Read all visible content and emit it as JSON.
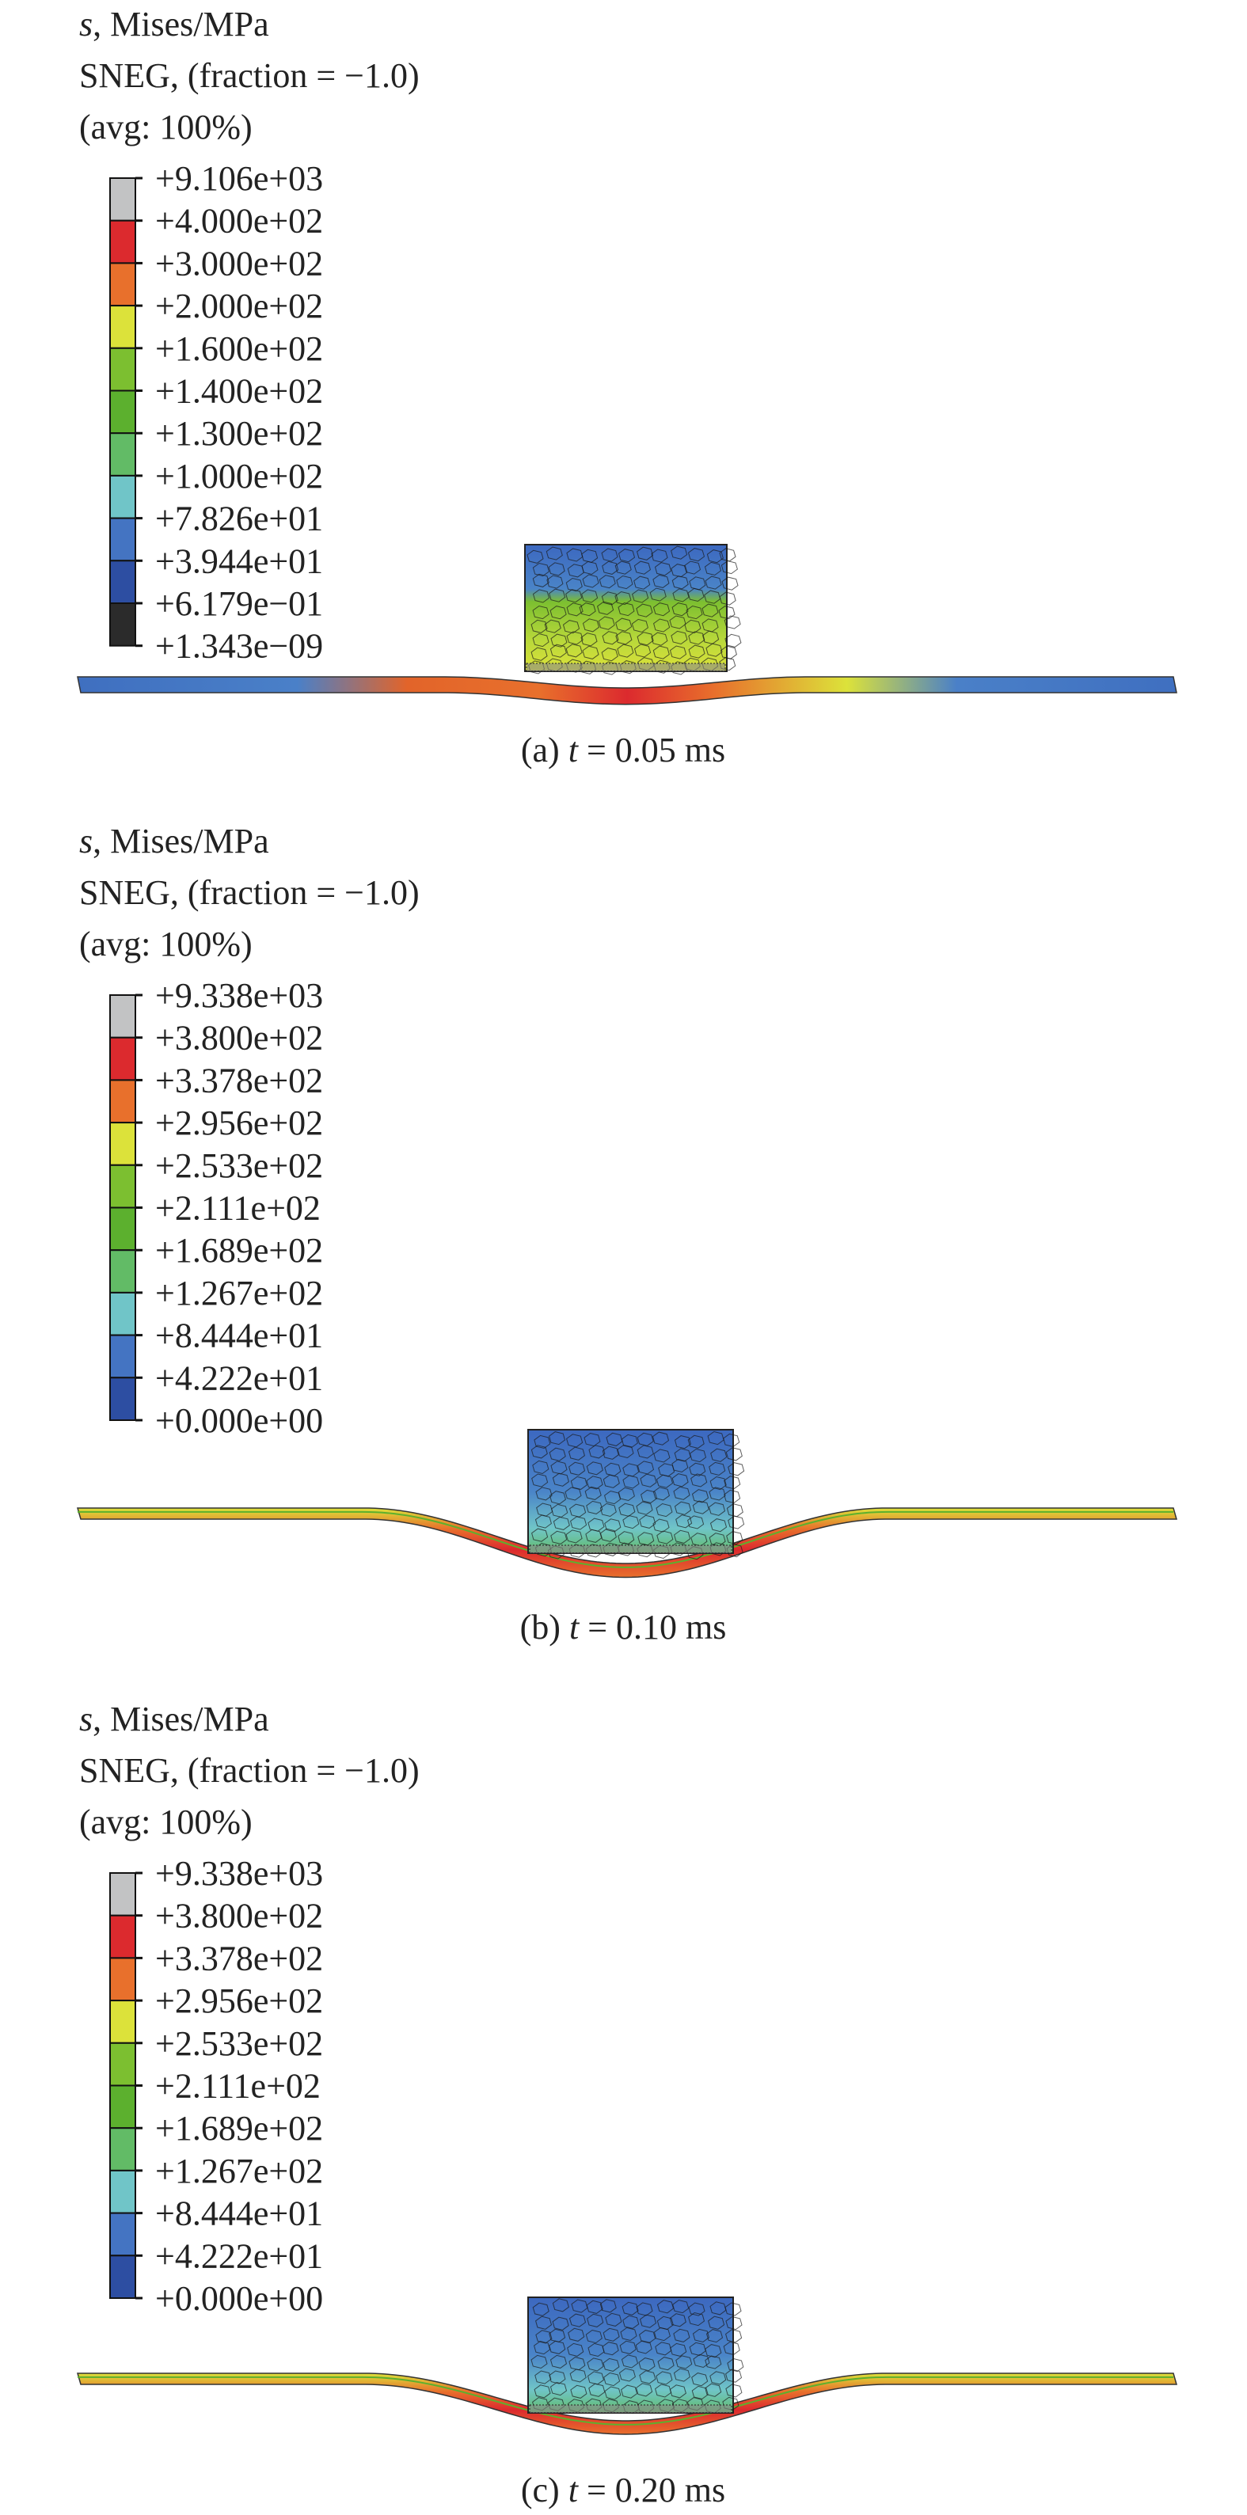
{
  "legend_colors": [
    "#c2c3c4",
    "#dc2a2e",
    "#e8702c",
    "#dce23a",
    "#7cbf30",
    "#5cb02e",
    "#62bb66",
    "#70c5c8",
    "#4474c2",
    "#2d4ea2",
    "#2b2b2b"
  ],
  "panels": [
    {
      "title_var": "s",
      "title_rest": ", Mises/MPa",
      "line2": "SNEG, (fraction = −1.0)",
      "line3": "(avg: 100%)",
      "legend_values": [
        "+9.106e+03",
        "+4.000e+02",
        "+3.000e+02",
        "+2.000e+02",
        "+1.600e+02",
        "+1.400e+02",
        "+1.300e+02",
        "+1.000e+02",
        "+7.826e+01",
        "+3.944e+01",
        "+6.179e−01",
        "+1.343e−09"
      ],
      "caption_prefix": "(a) ",
      "caption_var": "t",
      "caption_rest": " = 0.05 ms"
    },
    {
      "title_var": "s",
      "title_rest": ", Mises/MPa",
      "line2": "SNEG, (fraction = −1.0)",
      "line3": "(avg: 100%)",
      "legend_values": [
        "+9.338e+03",
        "+3.800e+02",
        "+3.378e+02",
        "+2.956e+02",
        "+2.533e+02",
        "+2.111e+02",
        "+1.689e+02",
        "+1.267e+02",
        "+8.444e+01",
        "+4.222e+01",
        "+0.000e+00"
      ],
      "caption_prefix": "(b) ",
      "caption_var": "t",
      "caption_rest": " = 0.10 ms"
    },
    {
      "title_var": "s",
      "title_rest": ", Mises/MPa",
      "line2": "SNEG, (fraction = −1.0)",
      "line3": "(avg: 100%)",
      "legend_values": [
        "+9.338e+03",
        "+3.800e+02",
        "+3.378e+02",
        "+2.956e+02",
        "+2.533e+02",
        "+2.111e+02",
        "+1.689e+02",
        "+1.267e+02",
        "+8.444e+01",
        "+4.222e+01",
        "+0.000e+00"
      ],
      "caption_prefix": "(c) ",
      "caption_var": "t",
      "caption_rest": " = 0.20 ms"
    }
  ]
}
